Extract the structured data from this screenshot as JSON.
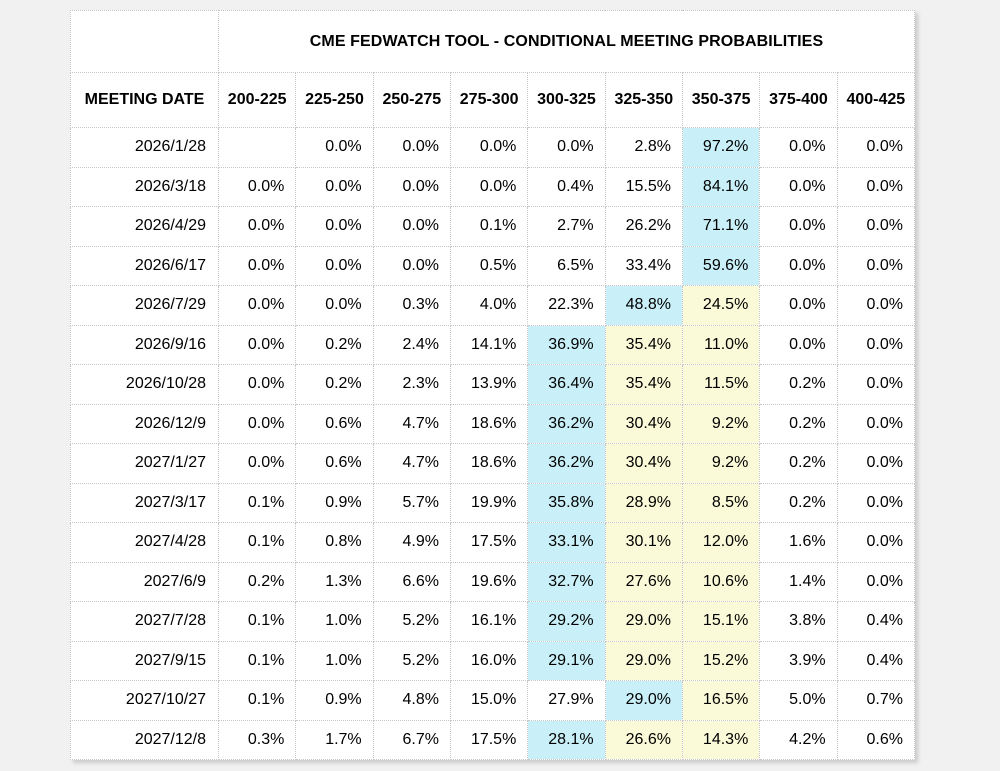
{
  "page": {
    "background_color": "#f1f1f1",
    "cell_background": "#ffffff",
    "border_color": "#c7c7c7"
  },
  "chart_data": {
    "type": "table",
    "title": "CME FEDWATCH TOOL - CONDITIONAL MEETING PROBABILITIES",
    "row_header": "MEETING DATE",
    "columns": [
      "200-225",
      "225-250",
      "250-275",
      "275-300",
      "300-325",
      "325-350",
      "350-375",
      "375-400",
      "400-425"
    ],
    "unit": "percent",
    "highlight_colors": {
      "cyan": "#c9f0f8",
      "yellow": "#fafad8"
    },
    "legend_note": "cyan = highest probability cell in row, yellow = adjacent highlighted cells",
    "rows": [
      {
        "date": "2026/1/28",
        "values": [
          "",
          "0.0%",
          "0.0%",
          "0.0%",
          "0.0%",
          "2.8%",
          "97.2%",
          "0.0%",
          "0.0%"
        ],
        "cyan_cols": [
          "350-375"
        ],
        "yellow_cols": []
      },
      {
        "date": "2026/3/18",
        "values": [
          "0.0%",
          "0.0%",
          "0.0%",
          "0.0%",
          "0.4%",
          "15.5%",
          "84.1%",
          "0.0%",
          "0.0%"
        ],
        "cyan_cols": [
          "350-375"
        ],
        "yellow_cols": []
      },
      {
        "date": "2026/4/29",
        "values": [
          "0.0%",
          "0.0%",
          "0.0%",
          "0.1%",
          "2.7%",
          "26.2%",
          "71.1%",
          "0.0%",
          "0.0%"
        ],
        "cyan_cols": [
          "350-375"
        ],
        "yellow_cols": []
      },
      {
        "date": "2026/6/17",
        "values": [
          "0.0%",
          "0.0%",
          "0.0%",
          "0.5%",
          "6.5%",
          "33.4%",
          "59.6%",
          "0.0%",
          "0.0%"
        ],
        "cyan_cols": [
          "350-375"
        ],
        "yellow_cols": []
      },
      {
        "date": "2026/7/29",
        "values": [
          "0.0%",
          "0.0%",
          "0.3%",
          "4.0%",
          "22.3%",
          "48.8%",
          "24.5%",
          "0.0%",
          "0.0%"
        ],
        "cyan_cols": [
          "325-350"
        ],
        "yellow_cols": [
          "350-375"
        ]
      },
      {
        "date": "2026/9/16",
        "values": [
          "0.0%",
          "0.2%",
          "2.4%",
          "14.1%",
          "36.9%",
          "35.4%",
          "11.0%",
          "0.0%",
          "0.0%"
        ],
        "cyan_cols": [
          "300-325"
        ],
        "yellow_cols": [
          "325-350",
          "350-375"
        ]
      },
      {
        "date": "2026/10/28",
        "values": [
          "0.0%",
          "0.2%",
          "2.3%",
          "13.9%",
          "36.4%",
          "35.4%",
          "11.5%",
          "0.2%",
          "0.0%"
        ],
        "cyan_cols": [
          "300-325"
        ],
        "yellow_cols": [
          "325-350",
          "350-375"
        ]
      },
      {
        "date": "2026/12/9",
        "values": [
          "0.0%",
          "0.6%",
          "4.7%",
          "18.6%",
          "36.2%",
          "30.4%",
          "9.2%",
          "0.2%",
          "0.0%"
        ],
        "cyan_cols": [
          "300-325"
        ],
        "yellow_cols": [
          "325-350",
          "350-375"
        ]
      },
      {
        "date": "2027/1/27",
        "values": [
          "0.0%",
          "0.6%",
          "4.7%",
          "18.6%",
          "36.2%",
          "30.4%",
          "9.2%",
          "0.2%",
          "0.0%"
        ],
        "cyan_cols": [
          "300-325"
        ],
        "yellow_cols": [
          "325-350",
          "350-375"
        ]
      },
      {
        "date": "2027/3/17",
        "values": [
          "0.1%",
          "0.9%",
          "5.7%",
          "19.9%",
          "35.8%",
          "28.9%",
          "8.5%",
          "0.2%",
          "0.0%"
        ],
        "cyan_cols": [
          "300-325"
        ],
        "yellow_cols": [
          "325-350",
          "350-375"
        ]
      },
      {
        "date": "2027/4/28",
        "values": [
          "0.1%",
          "0.8%",
          "4.9%",
          "17.5%",
          "33.1%",
          "30.1%",
          "12.0%",
          "1.6%",
          "0.0%"
        ],
        "cyan_cols": [
          "300-325"
        ],
        "yellow_cols": [
          "325-350",
          "350-375"
        ]
      },
      {
        "date": "2027/6/9",
        "values": [
          "0.2%",
          "1.3%",
          "6.6%",
          "19.6%",
          "32.7%",
          "27.6%",
          "10.6%",
          "1.4%",
          "0.0%"
        ],
        "cyan_cols": [
          "300-325"
        ],
        "yellow_cols": [
          "325-350",
          "350-375"
        ]
      },
      {
        "date": "2027/7/28",
        "values": [
          "0.1%",
          "1.0%",
          "5.2%",
          "16.1%",
          "29.2%",
          "29.0%",
          "15.1%",
          "3.8%",
          "0.4%"
        ],
        "cyan_cols": [
          "300-325"
        ],
        "yellow_cols": [
          "325-350",
          "350-375"
        ]
      },
      {
        "date": "2027/9/15",
        "values": [
          "0.1%",
          "1.0%",
          "5.2%",
          "16.0%",
          "29.1%",
          "29.0%",
          "15.2%",
          "3.9%",
          "0.4%"
        ],
        "cyan_cols": [
          "300-325"
        ],
        "yellow_cols": [
          "325-350",
          "350-375"
        ]
      },
      {
        "date": "2027/10/27",
        "values": [
          "0.1%",
          "0.9%",
          "4.8%",
          "15.0%",
          "27.9%",
          "29.0%",
          "16.5%",
          "5.0%",
          "0.7%"
        ],
        "cyan_cols": [
          "325-350"
        ],
        "yellow_cols": [
          "350-375"
        ]
      },
      {
        "date": "2027/12/8",
        "values": [
          "0.3%",
          "1.7%",
          "6.7%",
          "17.5%",
          "28.1%",
          "26.6%",
          "14.3%",
          "4.2%",
          "0.6%"
        ],
        "cyan_cols": [
          "300-325"
        ],
        "yellow_cols": [
          "325-350",
          "350-375"
        ]
      }
    ]
  }
}
